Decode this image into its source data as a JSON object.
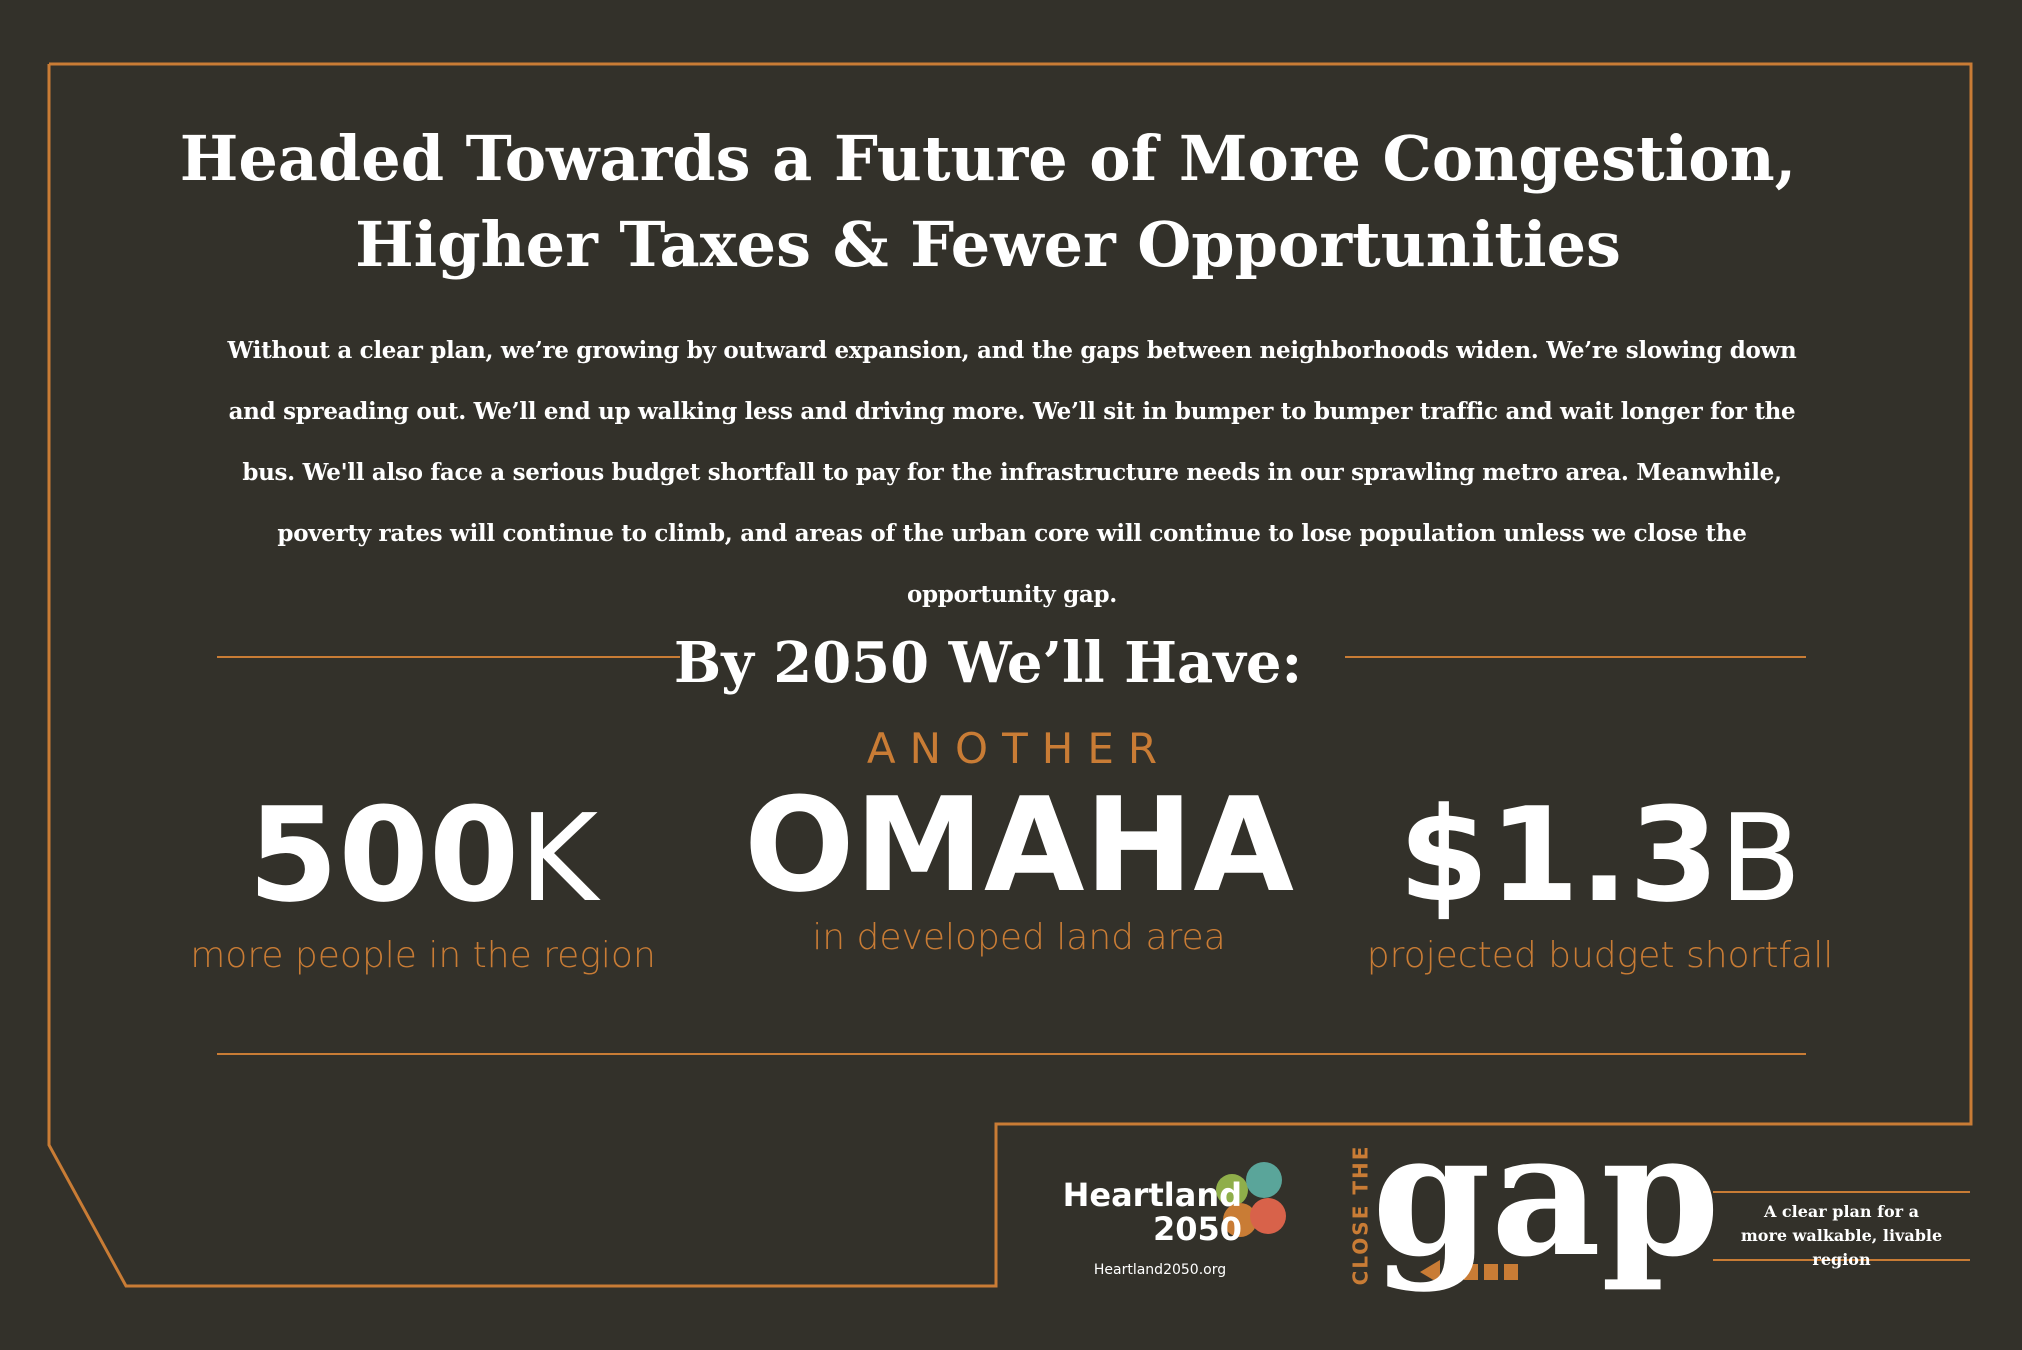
{
  "header": {
    "title_lines": [
      "Headed Towards a Future of More Congestion,",
      "Higher Taxes & Fewer Opportunities"
    ],
    "body": "Without a clear plan, we’re growing by outward expansion, and the gaps between neighborhoods widen. We’re slowing down and spreading out. We’ll end up walking less and driving more. We’ll sit in bumper to bumper traffic and wait longer for the bus. We'll also face a serious budget shortfall to pay for the infrastructure needs in our sprawling metro area. Meanwhile, poverty rates will continue to climb, and areas of the urban core will continue to lose population unless we close the opportunity gap."
  },
  "section_heading": "By 2050 We’ll Have:",
  "stats": [
    {
      "value": "500",
      "unit": "K",
      "label": "more people in the region"
    },
    {
      "prefix": "ANOTHER",
      "value": "OMAHA",
      "label": "in developed land area"
    },
    {
      "value": "$1.3",
      "unit": "B",
      "label": "projected budget shortfall"
    }
  ],
  "footer": {
    "logo_lines": [
      "Heartland",
      "2050"
    ],
    "url": "Heartland2050.org",
    "close_the": "CLOSE THE",
    "gap": "gap",
    "tagline_lines": [
      "A clear plan for a",
      "more walkable, livable region"
    ]
  }
}
